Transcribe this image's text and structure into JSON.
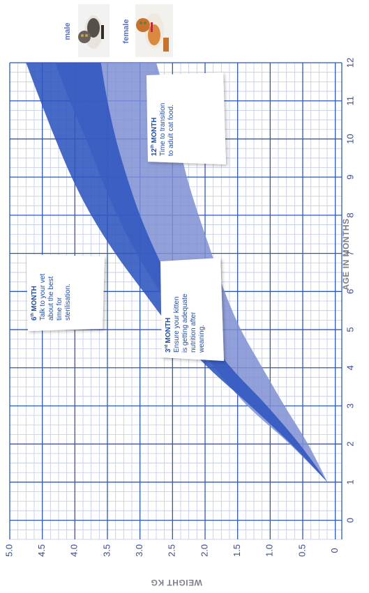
{
  "chart_data": {
    "type": "area",
    "orientation": "rotated-90",
    "xlabel": "AGE IN MONTHS",
    "ylabel": "WEIGHT KG",
    "xlim": [
      -0.5,
      12
    ],
    "ylim": [
      -0.1,
      5.0
    ],
    "x_ticks": [
      "0",
      "1",
      "2",
      "3",
      "4",
      "5",
      "6",
      "7",
      "8",
      "9",
      "10",
      "11",
      "12"
    ],
    "y_ticks": [
      "0",
      "0.5",
      "1.0",
      "1.5",
      "2.0",
      "2.5",
      "3.0",
      "3.5",
      "4.0",
      "4.5",
      "5.0"
    ],
    "grid": true,
    "legend_position": "top-right",
    "series": [
      {
        "name": "female",
        "color": "#7f8fd4",
        "x": [
          1,
          2,
          3,
          4,
          5,
          6,
          7,
          8,
          9,
          10,
          11,
          12
        ],
        "lower": [
          0.12,
          0.42,
          0.78,
          1.12,
          1.45,
          1.7,
          1.9,
          2.1,
          2.28,
          2.42,
          2.58,
          2.75
        ],
        "upper": [
          0.12,
          0.7,
          1.35,
          1.85,
          2.3,
          2.7,
          3.05,
          3.35,
          3.6,
          3.83,
          4.08,
          4.3
        ]
      },
      {
        "name": "male",
        "color": "#2f55bf",
        "x": [
          1,
          2,
          3,
          4,
          5,
          6,
          7,
          8,
          9,
          10,
          11,
          12
        ],
        "lower": [
          0.12,
          0.55,
          1.05,
          1.6,
          2.05,
          2.45,
          2.75,
          3.0,
          3.2,
          3.37,
          3.5,
          3.6
        ],
        "upper": [
          0.12,
          0.68,
          1.3,
          1.95,
          2.5,
          2.95,
          3.38,
          3.75,
          4.05,
          4.3,
          4.53,
          4.75
        ]
      }
    ],
    "annotations": [
      {
        "id": "month3",
        "num": "3",
        "sup": "rd",
        "title": "MONTH",
        "lines": [
          "Ensure your kitten",
          "is getting adequate",
          "nutrition after",
          "weaning."
        ]
      },
      {
        "id": "month6",
        "num": "6",
        "sup": "th",
        "title": "MONTH",
        "lines": [
          "Talk to your vet",
          "about the best",
          "time for",
          "sterilisation."
        ]
      },
      {
        "id": "month12",
        "num": "12",
        "sup": "th",
        "title": "MONTH",
        "lines": [
          "Time to transition",
          "to adult cat food."
        ]
      }
    ]
  },
  "legend": {
    "male_label": "male",
    "female_label": "female"
  },
  "colors": {
    "grid_major": "#2c57b8",
    "grid_minor": "#bfc8e6",
    "tick_text": "#3a4b8a",
    "axis_label": "#7d7f8a"
  },
  "icons": [
    "cat-male-photo",
    "cat-female-photo"
  ]
}
